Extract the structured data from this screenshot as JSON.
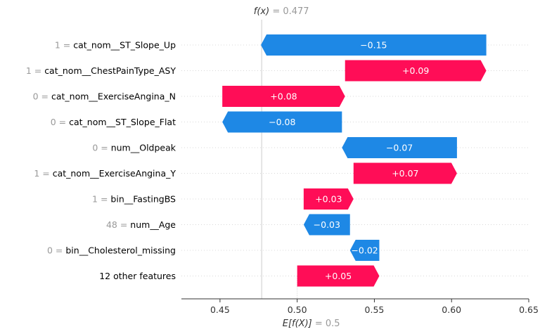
{
  "chart_data": {
    "type": "waterfall",
    "fx_label": "f(x)",
    "fx_value": "0.477",
    "base_label": "E[f(X)]",
    "base_value": "0.5",
    "final_value": 0.477,
    "base": 0.5,
    "xlim": [
      0.425,
      0.65
    ],
    "xticks": [
      0.45,
      0.5,
      0.55,
      0.6,
      0.65
    ],
    "xtick_labels": [
      "0.45",
      "0.50",
      "0.55",
      "0.60",
      "0.65"
    ],
    "colors": {
      "positive": "#ff0d57",
      "negative": "#1e88e5",
      "rule": "#cccccc"
    },
    "rows": [
      {
        "value": "1",
        "feature": "cat_nom__ST_Slope_Up",
        "start": 0.6225,
        "end": 0.4765,
        "label": "−0.15"
      },
      {
        "value": "1",
        "feature": "cat_nom__ChestPainType_ASY",
        "start": 0.531,
        "end": 0.6225,
        "label": "+0.09"
      },
      {
        "value": "0",
        "feature": "cat_nom__ExerciseAngina_N",
        "start": 0.4515,
        "end": 0.531,
        "label": "+0.08"
      },
      {
        "value": "0",
        "feature": "cat_nom__ST_Slope_Flat",
        "start": 0.529,
        "end": 0.4515,
        "label": "−0.08"
      },
      {
        "value": "0",
        "feature": "num__Oldpeak",
        "start": 0.6035,
        "end": 0.529,
        "label": "−0.07"
      },
      {
        "value": "1",
        "feature": "cat_nom__ExerciseAngina_Y",
        "start": 0.5365,
        "end": 0.6035,
        "label": "+0.07"
      },
      {
        "value": "1",
        "feature": "bin__FastingBS",
        "start": 0.5042,
        "end": 0.5365,
        "label": "+0.03"
      },
      {
        "value": "48",
        "feature": "num__Age",
        "start": 0.5342,
        "end": 0.5042,
        "label": "−0.03"
      },
      {
        "value": "0",
        "feature": "bin__Cholesterol_missing",
        "start": 0.5532,
        "end": 0.5342,
        "label": "−0.02"
      },
      {
        "value": "",
        "feature": "12 other features",
        "start": 0.5,
        "end": 0.5532,
        "label": "+0.05"
      }
    ]
  }
}
